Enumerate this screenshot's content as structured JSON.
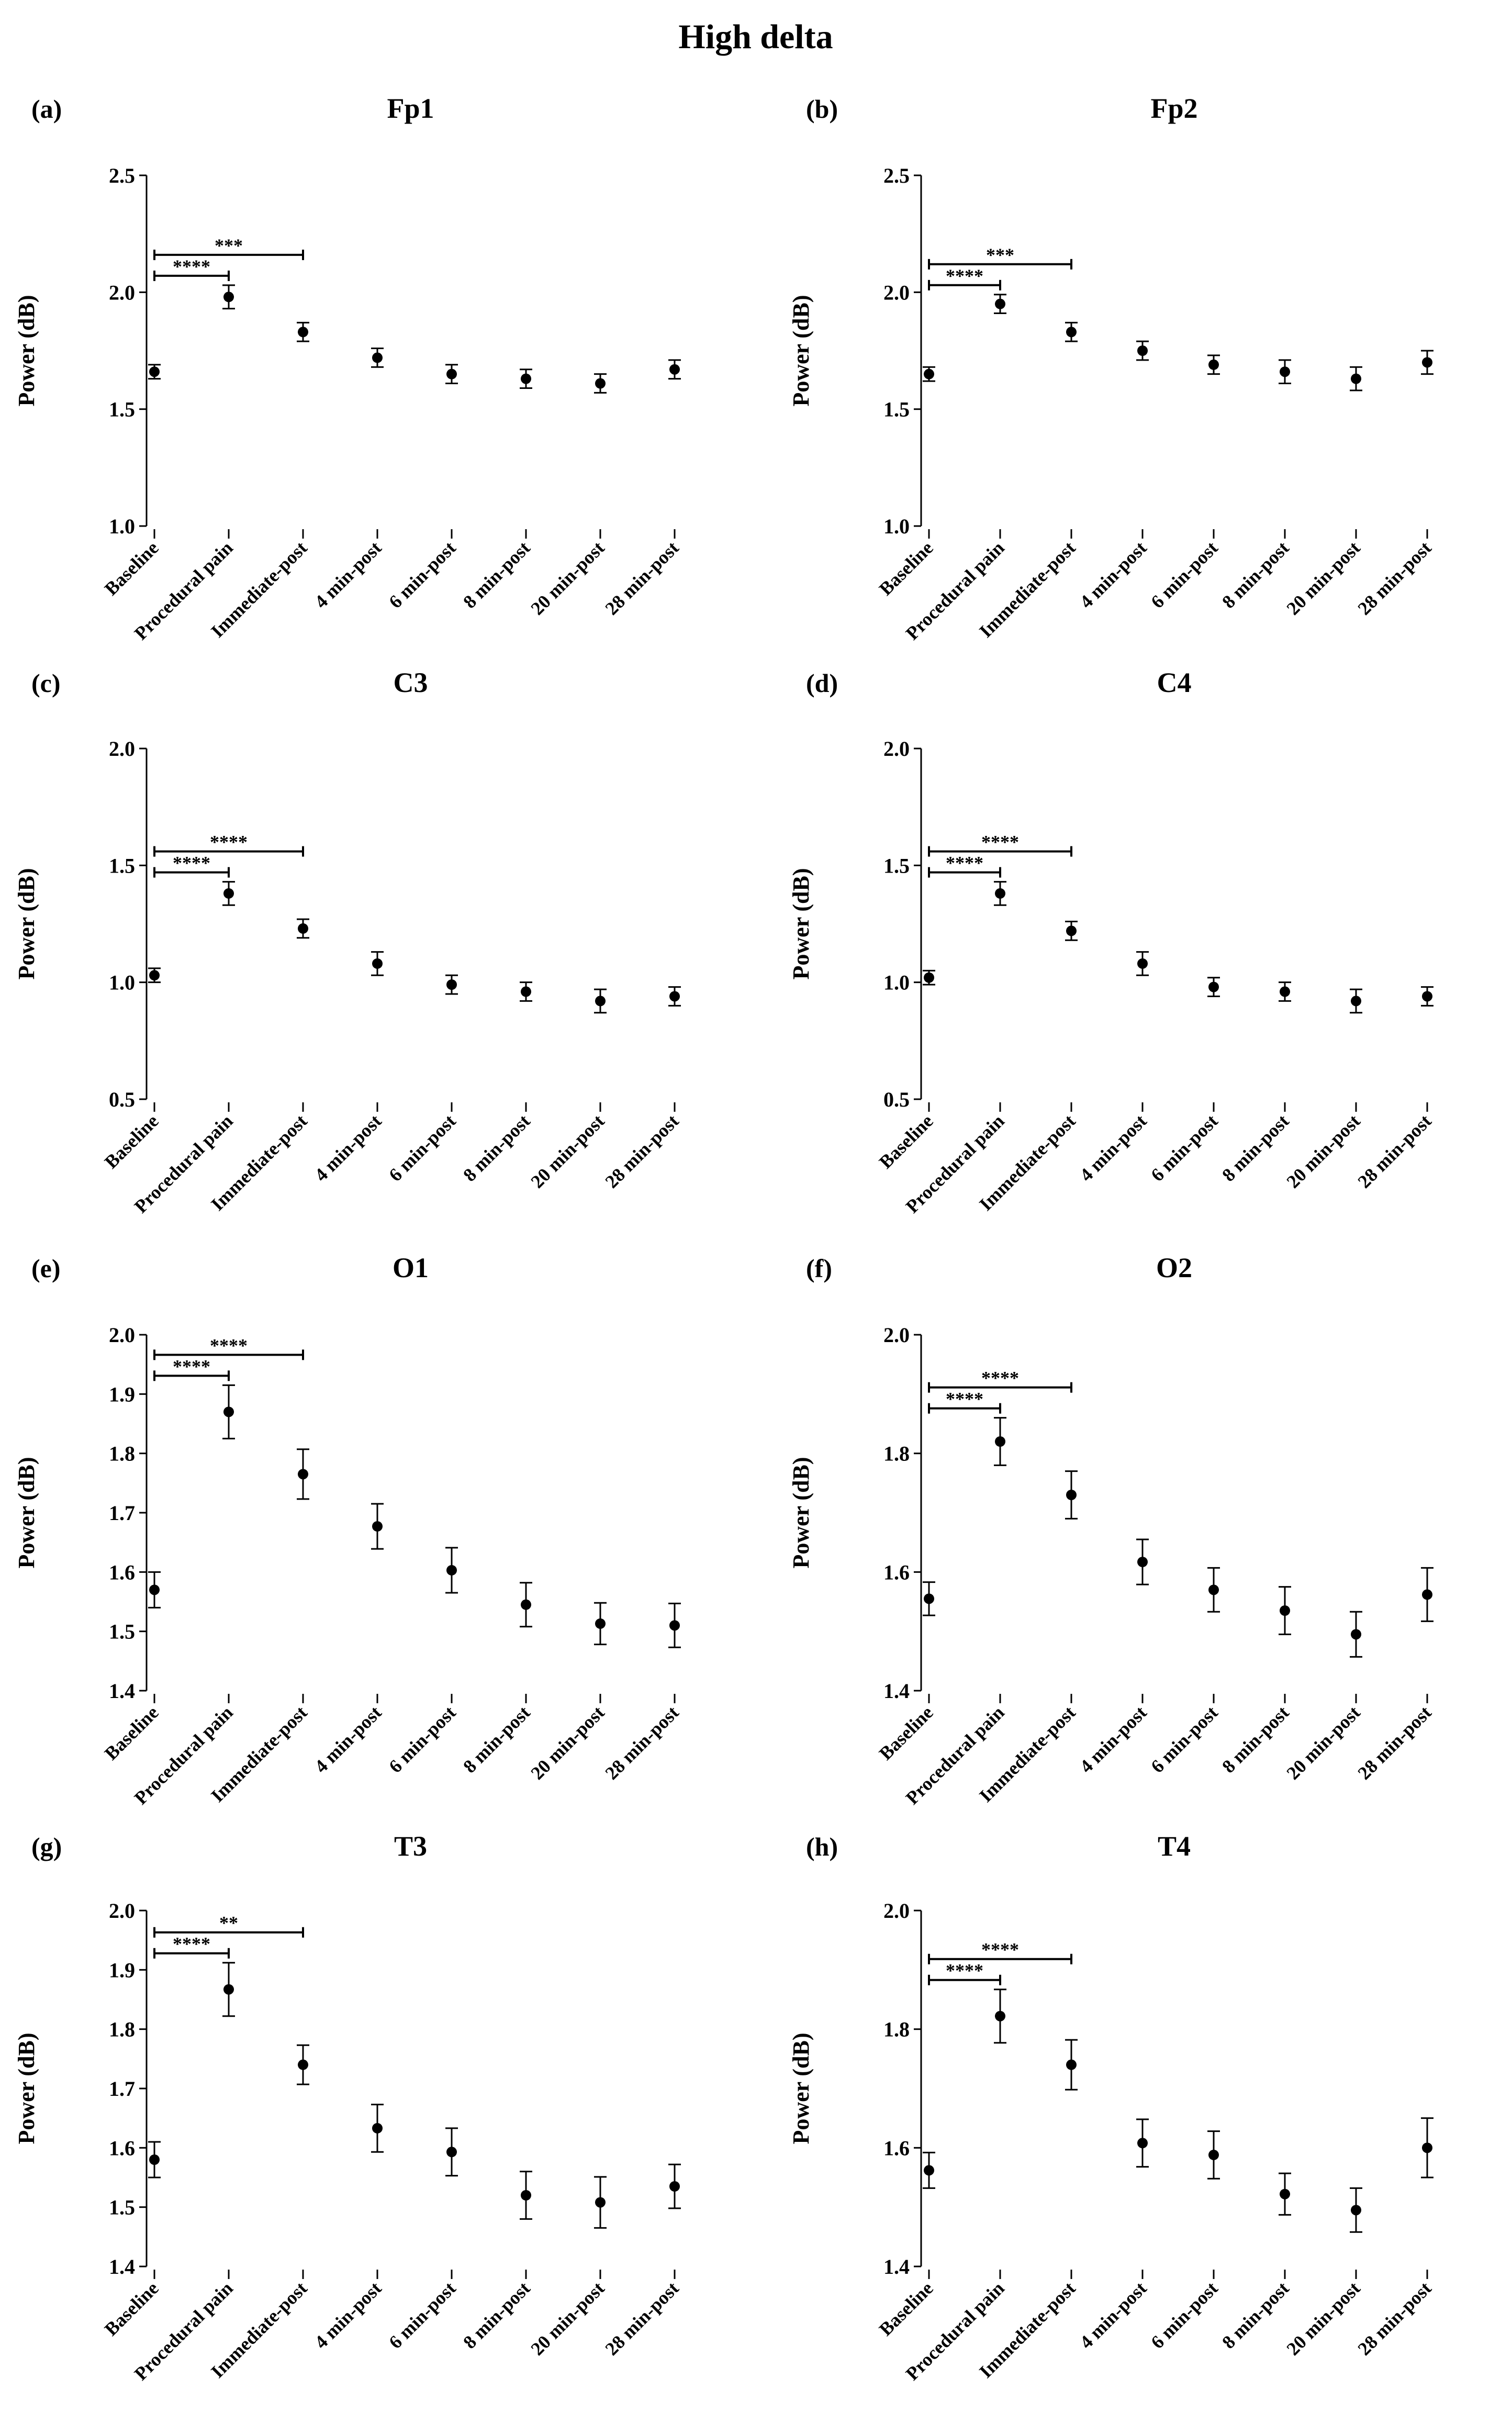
{
  "figure": {
    "title": "High delta",
    "y_axis_label": "Power (dB)"
  },
  "chart_data": [
    {
      "panel": "(a)",
      "title": "Fp1",
      "type": "scatter",
      "ylabel": "Power (dB)",
      "ylim": [
        1.0,
        2.5
      ],
      "yticks": [
        "1.0",
        "1.5",
        "2.0",
        "2.5"
      ],
      "categories": [
        "Baseline",
        "Procedural pain",
        "Immediate-post",
        "4 min-post",
        "6 min-post",
        "8 min-post",
        "20 min-post",
        "28 min-post"
      ],
      "values": [
        1.66,
        1.98,
        1.83,
        1.72,
        1.65,
        1.63,
        1.61,
        1.67
      ],
      "errors": [
        0.03,
        0.05,
        0.04,
        0.04,
        0.04,
        0.04,
        0.04,
        0.04
      ],
      "significance": [
        {
          "from": "Baseline",
          "to": "Procedural pain",
          "label": "****"
        },
        {
          "from": "Baseline",
          "to": "Immediate-post",
          "label": "***"
        }
      ]
    },
    {
      "panel": "(b)",
      "title": "Fp2",
      "type": "scatter",
      "ylabel": "Power (dB)",
      "ylim": [
        1.0,
        2.5
      ],
      "yticks": [
        "1.0",
        "1.5",
        "2.0",
        "2.5"
      ],
      "categories": [
        "Baseline",
        "Procedural pain",
        "Immediate-post",
        "4 min-post",
        "6 min-post",
        "8 min-post",
        "20 min-post",
        "28 min-post"
      ],
      "values": [
        1.65,
        1.95,
        1.83,
        1.75,
        1.69,
        1.66,
        1.63,
        1.7
      ],
      "errors": [
        0.03,
        0.04,
        0.04,
        0.04,
        0.04,
        0.05,
        0.05,
        0.05
      ],
      "significance": [
        {
          "from": "Baseline",
          "to": "Procedural pain",
          "label": "****"
        },
        {
          "from": "Baseline",
          "to": "Immediate-post",
          "label": "***"
        }
      ]
    },
    {
      "panel": "(c)",
      "title": "C3",
      "type": "scatter",
      "ylabel": "Power (dB)",
      "ylim": [
        0.5,
        2.0
      ],
      "yticks": [
        "0.5",
        "1.0",
        "1.5",
        "2.0"
      ],
      "categories": [
        "Baseline",
        "Procedural pain",
        "Immediate-post",
        "4 min-post",
        "6 min-post",
        "8 min-post",
        "20 min-post",
        "28 min-post"
      ],
      "values": [
        1.03,
        1.38,
        1.23,
        1.08,
        0.99,
        0.96,
        0.92,
        0.94
      ],
      "errors": [
        0.03,
        0.05,
        0.04,
        0.05,
        0.04,
        0.04,
        0.05,
        0.04
      ],
      "significance": [
        {
          "from": "Baseline",
          "to": "Procedural pain",
          "label": "****"
        },
        {
          "from": "Baseline",
          "to": "Immediate-post",
          "label": "****"
        }
      ]
    },
    {
      "panel": "(d)",
      "title": "C4",
      "type": "scatter",
      "ylabel": "Power (dB)",
      "ylim": [
        0.5,
        2.0
      ],
      "yticks": [
        "0.5",
        "1.0",
        "1.5",
        "2.0"
      ],
      "categories": [
        "Baseline",
        "Procedural pain",
        "Immediate-post",
        "4 min-post",
        "6 min-post",
        "8 min-post",
        "20 min-post",
        "28 min-post"
      ],
      "values": [
        1.02,
        1.38,
        1.22,
        1.08,
        0.98,
        0.96,
        0.92,
        0.94
      ],
      "errors": [
        0.03,
        0.05,
        0.04,
        0.05,
        0.04,
        0.04,
        0.05,
        0.04
      ],
      "significance": [
        {
          "from": "Baseline",
          "to": "Procedural pain",
          "label": "****"
        },
        {
          "from": "Baseline",
          "to": "Immediate-post",
          "label": "****"
        }
      ]
    },
    {
      "panel": "(e)",
      "title": "O1",
      "type": "scatter",
      "ylabel": "Power (dB)",
      "ylim": [
        1.4,
        2.0
      ],
      "yticks": [
        "1.4",
        "1.5",
        "1.6",
        "1.7",
        "1.8",
        "1.9",
        "2.0"
      ],
      "categories": [
        "Baseline",
        "Procedural pain",
        "Immediate-post",
        "4 min-post",
        "6 min-post",
        "8 min-post",
        "20 min-post",
        "28 min-post"
      ],
      "values": [
        1.57,
        1.87,
        1.765,
        1.677,
        1.603,
        1.545,
        1.513,
        1.51
      ],
      "errors": [
        0.03,
        0.045,
        0.042,
        0.038,
        0.038,
        0.037,
        0.035,
        0.037
      ],
      "significance": [
        {
          "from": "Baseline",
          "to": "Procedural pain",
          "label": "****"
        },
        {
          "from": "Baseline",
          "to": "Immediate-post",
          "label": "****"
        }
      ]
    },
    {
      "panel": "(f)",
      "title": "O2",
      "type": "scatter",
      "ylabel": "Power (dB)",
      "ylim": [
        1.4,
        2.0
      ],
      "yticks": [
        "1.4",
        "1.6",
        "1.8",
        "2.0"
      ],
      "categories": [
        "Baseline",
        "Procedural pain",
        "Immediate-post",
        "4 min-post",
        "6 min-post",
        "8 min-post",
        "20 min-post",
        "28 min-post"
      ],
      "values": [
        1.555,
        1.82,
        1.73,
        1.617,
        1.57,
        1.535,
        1.495,
        1.562
      ],
      "errors": [
        0.028,
        0.04,
        0.04,
        0.038,
        0.037,
        0.04,
        0.038,
        0.045
      ],
      "significance": [
        {
          "from": "Baseline",
          "to": "Procedural pain",
          "label": "****"
        },
        {
          "from": "Baseline",
          "to": "Immediate-post",
          "label": "****"
        }
      ]
    },
    {
      "panel": "(g)",
      "title": "T3",
      "type": "scatter",
      "ylabel": "Power (dB)",
      "ylim": [
        1.4,
        2.0
      ],
      "yticks": [
        "1.4",
        "1.5",
        "1.6",
        "1.7",
        "1.8",
        "1.9",
        "2.0"
      ],
      "categories": [
        "Baseline",
        "Procedural pain",
        "Immediate-post",
        "4 min-post",
        "6 min-post",
        "8 min-post",
        "20 min-post",
        "28 min-post"
      ],
      "values": [
        1.58,
        1.867,
        1.74,
        1.633,
        1.593,
        1.52,
        1.508,
        1.535
      ],
      "errors": [
        0.03,
        0.045,
        0.033,
        0.04,
        0.04,
        0.04,
        0.043,
        0.037
      ],
      "significance": [
        {
          "from": "Baseline",
          "to": "Procedural pain",
          "label": "****"
        },
        {
          "from": "Baseline",
          "to": "Immediate-post",
          "label": "**"
        }
      ]
    },
    {
      "panel": "(h)",
      "title": "T4",
      "type": "scatter",
      "ylabel": "Power (dB)",
      "ylim": [
        1.4,
        2.0
      ],
      "yticks": [
        "1.4",
        "1.6",
        "1.8",
        "2.0"
      ],
      "categories": [
        "Baseline",
        "Procedural pain",
        "Immediate-post",
        "4 min-post",
        "6 min-post",
        "8 min-post",
        "20 min-post",
        "28 min-post"
      ],
      "values": [
        1.562,
        1.822,
        1.74,
        1.608,
        1.588,
        1.522,
        1.495,
        1.6
      ],
      "errors": [
        0.03,
        0.045,
        0.042,
        0.04,
        0.04,
        0.035,
        0.037,
        0.05
      ],
      "significance": [
        {
          "from": "Baseline",
          "to": "Procedural pain",
          "label": "****"
        },
        {
          "from": "Baseline",
          "to": "Immediate-post",
          "label": "****"
        }
      ]
    }
  ]
}
